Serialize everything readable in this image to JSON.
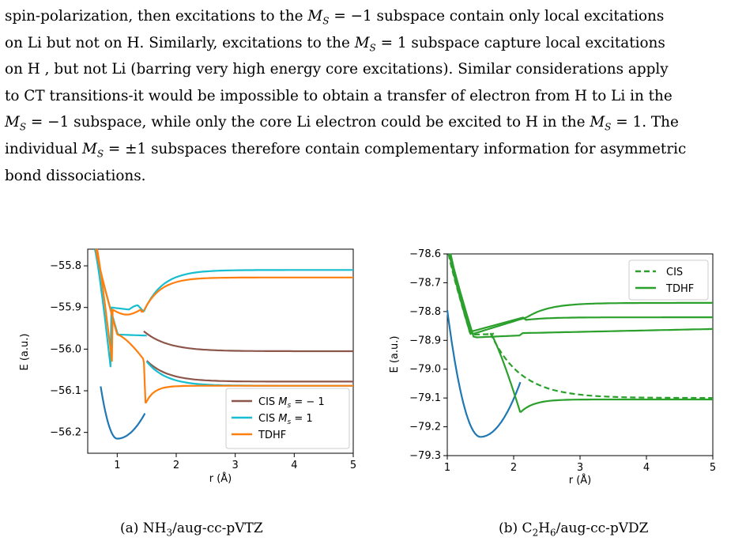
{
  "paragraph": {
    "line1": "spin-polarization, then excitations to the M_S = −1 subspace contain only local excitations",
    "line2": "on Li but not on H. Similarly, excitations to the M_S = 1 subspace capture local excitations",
    "line3": "on H , but not Li (barring very high energy core excitations). Similar considerations apply",
    "line4": "to CT transitions-it would be impossible to obtain a transfer of electron from H to Li in the",
    "line5": "M_S = −1 subspace, while only the core Li electron could be excited to H in the M_S = 1. The",
    "line6": "individual M_S = ±1 subspaces therefore contain complementary information for asymmetric",
    "line7": "bond dissociations."
  },
  "colors": {
    "cis_minus": "#8c564b",
    "cis_plus": "#17becf",
    "tdhf_orange": "#ff7f0e",
    "ground": "#1f77b4",
    "green": "#2ca02c"
  },
  "captions": {
    "a": "(a) NH3/aug-cc-pVTZ",
    "b": "(b) C2H6/aug-cc-pVDZ"
  },
  "chart_data": [
    {
      "type": "line",
      "panel": "a",
      "xlabel": "r (Å)",
      "ylabel": "E (a.u.)",
      "xlim": [
        0.5,
        5
      ],
      "ylim": [
        -56.25,
        -55.76
      ],
      "xticks": [
        "1",
        "2",
        "3",
        "4",
        "5"
      ],
      "yticks": [
        "−55.8",
        "−55.9",
        "−56.0",
        "−56.1",
        "−56.2"
      ],
      "legend_position": "lower-right",
      "legend": [
        "CIS M_s = −1",
        "CIS M_s = 1",
        "TDHF"
      ],
      "series": [
        {
          "name": "ground",
          "x": [
            0.9,
            1.0,
            1.1,
            1.3,
            1.5
          ],
          "y": [
            -56.18,
            -56.215,
            -56.2,
            -56.165,
            -56.13
          ]
        },
        {
          "name": "CIS M_s = −1 (upper)",
          "x": [
            1.45,
            1.8,
            2.2,
            3,
            5
          ],
          "y": [
            -55.93,
            -55.972,
            -55.995,
            -56.005,
            -56.005
          ]
        },
        {
          "name": "CIS M_s = −1 (lower)",
          "x": [
            1.5,
            1.9,
            2.4,
            3,
            5
          ],
          "y": [
            -56.035,
            -56.064,
            -56.075,
            -56.077,
            -56.078
          ]
        },
        {
          "name": "CIS M_s = 1 (upper)",
          "x": [
            1.45,
            1.7,
            2.0,
            3,
            5
          ],
          "y": [
            -55.91,
            -55.86,
            -55.825,
            -55.81,
            -55.81
          ]
        },
        {
          "name": "TDHF (upper)",
          "x": [
            1.45,
            1.7,
            2.1,
            3,
            5
          ],
          "y": [
            -55.91,
            -55.855,
            -55.825,
            -55.825,
            -55.828
          ]
        },
        {
          "name": "TDHF (lower)",
          "x": [
            1.45,
            1.55,
            2,
            3,
            5
          ],
          "y": [
            -56.13,
            -56.095,
            -56.088,
            -56.088,
            -56.088
          ]
        }
      ]
    },
    {
      "type": "line",
      "panel": "b",
      "xlabel": "r (Å)",
      "ylabel": "E (a.u.)",
      "xlim": [
        1,
        5
      ],
      "ylim": [
        -79.3,
        -78.6
      ],
      "xticks": [
        "1",
        "2",
        "3",
        "4",
        "5"
      ],
      "yticks": [
        "−78.6",
        "−78.7",
        "−78.8",
        "−78.9",
        "−79.0",
        "−79.1",
        "−79.2",
        "−79.3"
      ],
      "legend_position": "top-right",
      "legend": [
        "CIS",
        "TDHF"
      ],
      "series": [
        {
          "name": "ground",
          "x": [
            1.0,
            1.2,
            1.5,
            1.8,
            2.1
          ],
          "y": [
            -78.8,
            -79.15,
            -79.235,
            -79.2,
            -79.15
          ]
        },
        {
          "name": "CIS",
          "x": [
            1.65,
            2.0,
            2.5,
            3,
            5
          ],
          "y": [
            -78.875,
            -79.0,
            -79.07,
            -79.095,
            -79.1
          ]
        },
        {
          "name": "TDHF (lower)",
          "x": [
            2.1,
            2.3,
            3,
            5
          ],
          "y": [
            -79.15,
            -79.12,
            -79.107,
            -79.105
          ]
        },
        {
          "name": "TDHF (upper)",
          "x": [
            2.2,
            2.5,
            3,
            5
          ],
          "y": [
            -78.825,
            -78.79,
            -78.775,
            -78.77
          ]
        },
        {
          "name": "TDHF (middle)",
          "x": [
            2.2,
            2.5,
            3,
            5
          ],
          "y": [
            -78.83,
            -78.82,
            -78.82,
            -78.82
          ]
        },
        {
          "name": "TDHF (third)",
          "x": [
            1.7,
            2.1,
            3,
            5
          ],
          "y": [
            -78.88,
            -78.875,
            -78.87,
            -78.87
          ]
        }
      ]
    }
  ]
}
